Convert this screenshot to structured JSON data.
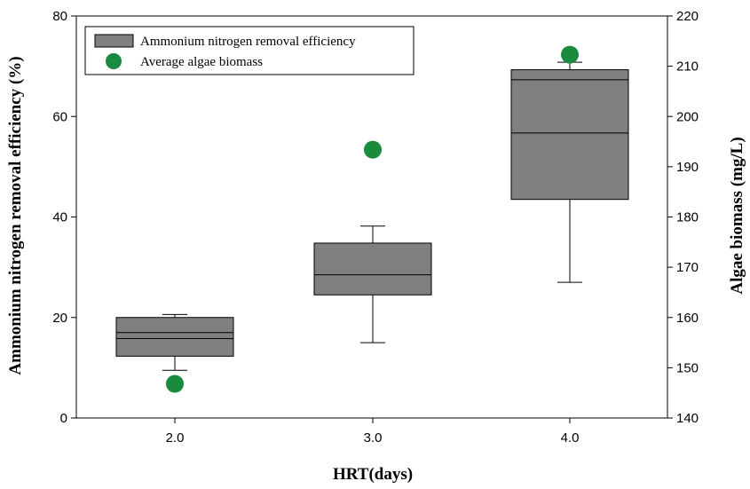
{
  "chart_data": {
    "type": "box",
    "categories": [
      "2.0",
      "3.0",
      "4.0"
    ],
    "xlabel": "HRT(days)",
    "ylabel": "Ammonium nitrogen removal efficiency (%)",
    "y2label": "Algae biomass (mg/L)",
    "ylim": [
      0,
      80
    ],
    "y2lim": [
      140,
      220
    ],
    "yticks": [
      "0",
      "20",
      "40",
      "60",
      "80"
    ],
    "y2ticks": [
      "140",
      "150",
      "160",
      "170",
      "180",
      "190",
      "200",
      "210",
      "220"
    ],
    "grid": false,
    "legend_position": "top-left",
    "series": [
      {
        "name": "Ammonium nitrogen removal efficiency",
        "kind": "box",
        "axis": "left",
        "color": "#808080",
        "boxes": [
          {
            "x": "2.0",
            "whisker_low": 9.5,
            "q1": 12.3,
            "median": 15.8,
            "q3": 20.0,
            "whisker_high": 20.6,
            "line_inside": 17.0
          },
          {
            "x": "3.0",
            "whisker_low": 15.0,
            "q1": 24.5,
            "median": 28.5,
            "q3": 34.8,
            "whisker_high": 38.2
          },
          {
            "x": "4.0",
            "whisker_low": 27.0,
            "q1": 43.5,
            "median": 56.7,
            "q3": 69.3,
            "whisker_high": 70.8,
            "line_inside": 67.3
          }
        ]
      },
      {
        "name": "Average algae biomass",
        "kind": "scatter",
        "axis": "right",
        "color": "#1a8a3c",
        "points": [
          {
            "x": "2.0",
            "y": 146.8
          },
          {
            "x": "3.0",
            "y": 193.4
          },
          {
            "x": "4.0",
            "y": 212.3
          }
        ]
      }
    ]
  }
}
